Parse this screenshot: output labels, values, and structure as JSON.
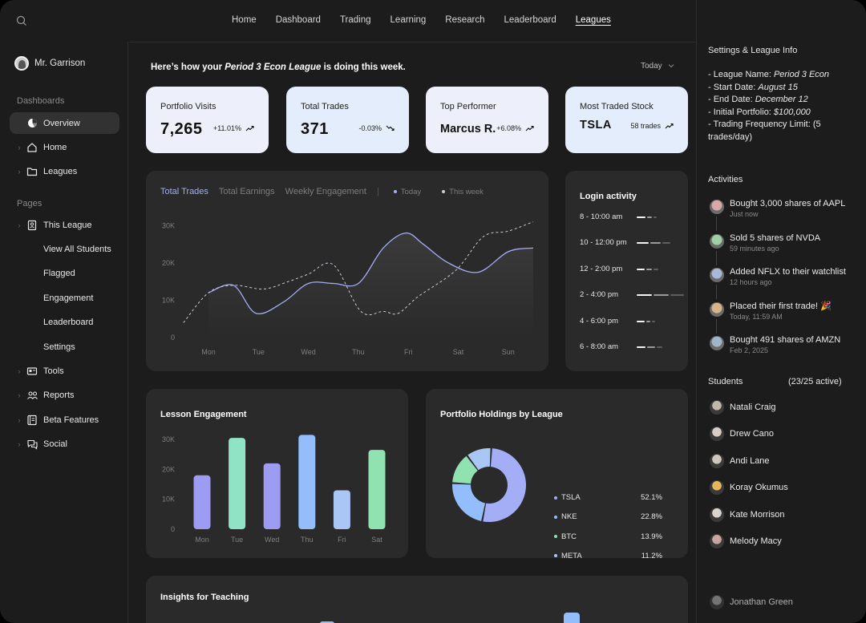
{
  "nav": {
    "items": [
      "Home",
      "Dashboard",
      "Trading",
      "Learning",
      "Research",
      "Leaderboard",
      "Leagues"
    ],
    "active": "Leagues"
  },
  "sidebar": {
    "user": "Mr. Garrison",
    "dashboards_label": "Dashboards",
    "overview": "Overview",
    "home": "Home",
    "leagues": "Leagues",
    "pages_label": "Pages",
    "this_league": "This League",
    "view_all_students": "View All Students",
    "flagged": "Flagged",
    "engagement": "Engagement",
    "leaderboard": "Leaderboard",
    "settings": "Settings",
    "tools": "Tools",
    "reports": "Reports",
    "beta_features": "Beta Features",
    "social": "Social"
  },
  "main": {
    "headline_pre": "Here’s how your ",
    "headline_league": "Period 3 Econ League",
    "headline_post": " is doing this week.",
    "period": "Today",
    "kpis": [
      {
        "title": "Portfolio Visits",
        "value": "7,265",
        "delta": "+11.01%"
      },
      {
        "title": "Total Trades",
        "value": "371",
        "delta": "-0.03%"
      },
      {
        "title": "Top Performer",
        "value": "Marcus R.",
        "delta": "+6.08%"
      },
      {
        "title": "Most Traded Stock",
        "value": "TSLA",
        "delta": "58 trades"
      }
    ],
    "trades_tabs": [
      "Total Trades",
      "Total Earnings",
      "Weekly Engagement"
    ],
    "legend_today": "Today",
    "legend_week": "This week",
    "login_title": "Login activity",
    "login_rows": [
      "8 - 10:00 am",
      "10 - 12:00 pm",
      "12 - 2:00 pm",
      "2 - 4:00 pm",
      "4 - 6:00 pm",
      "6 - 8:00 am"
    ],
    "login_levels": [
      [
        0.6,
        0.3,
        0.2
      ],
      [
        0.8,
        0.7,
        0.5
      ],
      [
        0.5,
        0.4,
        0.3
      ],
      [
        1.0,
        1.0,
        0.9
      ],
      [
        0.5,
        0.3,
        0.2
      ],
      [
        0.6,
        0.5,
        0.4
      ]
    ],
    "lesson_title": "Lesson Engagement",
    "holdings_title": "Portfolio Holdings by League",
    "insights_title": "Insights for Teaching"
  },
  "chart_data": [
    {
      "type": "line",
      "x": [
        "Mon",
        "Tue",
        "Wed",
        "Thu",
        "Fri",
        "Sat",
        "Sun"
      ],
      "y_ticks": [
        "0",
        "10K",
        "20K",
        "30K"
      ],
      "ylim": [
        0,
        35000
      ],
      "series": [
        {
          "name": "Today",
          "style": "solid",
          "x": [
            0,
            0.5,
            0.95,
            1.5,
            2.0,
            2.5,
            3.0,
            3.5,
            3.95,
            4.3,
            4.8,
            5.4,
            6.0,
            6.5
          ],
          "values": [
            12000,
            14000,
            6500,
            9500,
            14500,
            14500,
            14500,
            24000,
            28000,
            25000,
            20000,
            17500,
            23000,
            24000
          ]
        },
        {
          "name": "This week",
          "style": "dashed",
          "x": [
            -0.5,
            0,
            0.5,
            1.1,
            1.6,
            2.0,
            2.5,
            3.05,
            3.5,
            3.8,
            4.2,
            4.95,
            5.5,
            6.0,
            6.5
          ],
          "values": [
            4000,
            12000,
            14000,
            13000,
            15000,
            17000,
            19500,
            7000,
            7000,
            6500,
            11000,
            18000,
            27000,
            28500,
            31000
          ]
        }
      ],
      "colors": {
        "today": "#a3aef7",
        "week": "#c9cbd8"
      }
    },
    {
      "type": "bar",
      "categories": [
        "Mon",
        "Tue",
        "Wed",
        "Thu",
        "Fri",
        "Sat"
      ],
      "values": [
        18000,
        30500,
        22000,
        31500,
        13000,
        26500
      ],
      "y_ticks": [
        "0",
        "10K",
        "20K",
        "30K"
      ],
      "ylim": [
        0,
        30000
      ],
      "colors": [
        "#9d9cf3",
        "#90e3c4",
        "#9d9cf3",
        "#93bdfb",
        "#a9c6f4",
        "#90e3b0"
      ]
    },
    {
      "type": "pie",
      "labels": [
        "TSLA",
        "NKE",
        "BTC",
        "META"
      ],
      "values": [
        52.1,
        22.8,
        13.9,
        11.2
      ],
      "display": [
        "52.1%",
        "22.8%",
        "13.9%",
        "11.2%"
      ],
      "colors": [
        "#a3aef7",
        "#93bdfb",
        "#90e3b0",
        "#a9c6f4"
      ]
    }
  ],
  "right": {
    "settings_title": "Settings & League Info",
    "info": {
      "name_label": "- League Name: ",
      "name": "Period 3 Econ",
      "start_label": "- Start Date: ",
      "start": "August 15",
      "end_label": "- End Date: ",
      "end": "December 12",
      "initial_label": "- Initial Portfolio: ",
      "initial": "$100,000",
      "freq": "- Trading Frequency Limit: (5 trades/day)"
    },
    "activities_title": "Activities",
    "activities": [
      {
        "text": "Bought 3,000 shares of AAPL",
        "time": "Just now",
        "color": "#d9a7a7"
      },
      {
        "text": "Sold 5 shares of NVDA",
        "time": "59 minutes ago",
        "color": "#9ecfa5"
      },
      {
        "text": "Added NFLX to their watchlist",
        "time": "12 hours ago",
        "color": "#a9b8d8"
      },
      {
        "text": "Placed their first trade! 🎉",
        "time": "Today, 11:59 AM",
        "color": "#d9b48a"
      },
      {
        "text": "Bought 491 shares of AMZN",
        "time": "Feb 2, 2025",
        "color": "#9fb7c9"
      }
    ],
    "students_title": "Students",
    "students_count": "(23/25 active)",
    "students": [
      "Natali Craig",
      "Drew Cano",
      "Andi Lane",
      "Koray Okumus",
      "Kate Morrison",
      "Melody Macy",
      "Jonathan Green"
    ]
  }
}
